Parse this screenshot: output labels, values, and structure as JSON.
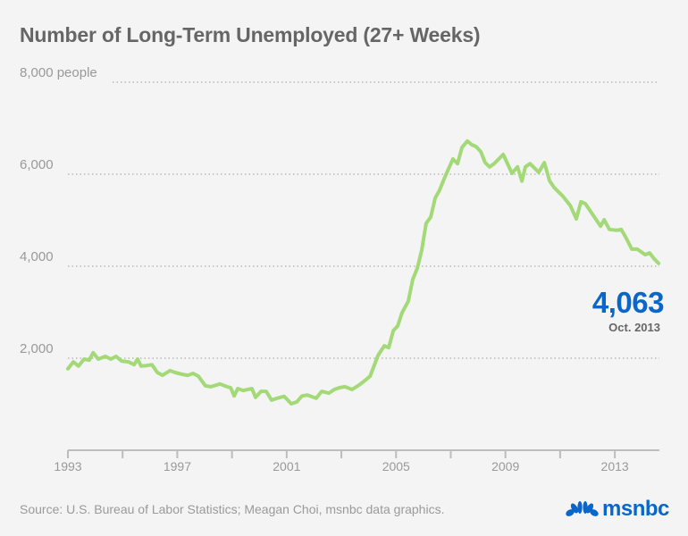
{
  "chart_data": {
    "type": "line",
    "title": "Number of Long-Term Unemployed (27+ Weeks)",
    "xlabel": "",
    "ylabel": "",
    "xlim": [
      1993,
      2014.63
    ],
    "ylim": [
      0,
      8000
    ],
    "grid": true,
    "x_ticks": [
      1993,
      1995,
      1997,
      1999,
      2001,
      2003,
      2005,
      2007,
      2009,
      2011,
      2013
    ],
    "x_tick_labels": [
      "1993",
      "1997",
      "2001",
      "2005",
      "2009",
      "2013"
    ],
    "x_tick_label_values": [
      1993,
      1997,
      2001,
      2005,
      2009,
      2013
    ],
    "y_ticks": [
      2000,
      4000,
      6000,
      8000
    ],
    "y_tick_labels": [
      "2,000",
      "4,000",
      "6,000",
      "8,000 people"
    ],
    "line_color": "#a3d977",
    "x": [
      1993.0,
      1993.2,
      1993.39,
      1993.59,
      1993.78,
      1993.92,
      1994.11,
      1994.37,
      1994.57,
      1994.76,
      1994.96,
      1995.22,
      1995.42,
      1995.55,
      1995.68,
      1995.88,
      1996.07,
      1996.27,
      1996.46,
      1996.73,
      1996.92,
      1997.18,
      1997.38,
      1997.58,
      1997.77,
      1998.03,
      1998.23,
      1998.56,
      1998.82,
      1998.95,
      1999.08,
      1999.21,
      1999.41,
      1999.73,
      1999.86,
      2000.06,
      2000.25,
      2000.45,
      2000.65,
      2000.91,
      2001.17,
      2001.37,
      2001.56,
      2001.76,
      2002.08,
      2002.28,
      2002.54,
      2002.74,
      2002.93,
      2003.13,
      2003.39,
      2003.65,
      2003.85,
      2004.05,
      2004.34,
      2004.57,
      2004.73,
      2004.9,
      2005.06,
      2005.22,
      2005.45,
      2005.61,
      2005.78,
      2005.94,
      2006.1,
      2006.27,
      2006.43,
      2006.59,
      2006.76,
      2007.08,
      2007.25,
      2007.41,
      2007.61,
      2007.77,
      2007.93,
      2008.1,
      2008.26,
      2008.42,
      2008.59,
      2008.92,
      2009.24,
      2009.44,
      2009.6,
      2009.73,
      2009.9,
      2010.22,
      2010.42,
      2010.61,
      2010.78,
      2011.1,
      2011.37,
      2011.59,
      2011.76,
      2011.92,
      2012.48,
      2012.61,
      2012.8,
      2013.07,
      2013.23,
      2013.39,
      2013.62,
      2013.82,
      2014.11,
      2014.27,
      2014.44,
      2014.6
    ],
    "values": [
      1770,
      1920,
      1830,
      1980,
      1960,
      2120,
      1980,
      2040,
      1980,
      2040,
      1940,
      1920,
      1860,
      1980,
      1830,
      1840,
      1860,
      1690,
      1630,
      1730,
      1690,
      1650,
      1630,
      1670,
      1610,
      1400,
      1380,
      1440,
      1380,
      1360,
      1180,
      1340,
      1300,
      1340,
      1150,
      1280,
      1280,
      1090,
      1130,
      1170,
      1010,
      1050,
      1180,
      1200,
      1130,
      1280,
      1240,
      1320,
      1360,
      1380,
      1320,
      1420,
      1510,
      1610,
      2060,
      2270,
      2230,
      2600,
      2700,
      2990,
      3240,
      3710,
      3960,
      4350,
      4930,
      5070,
      5480,
      5650,
      5900,
      6330,
      6230,
      6580,
      6720,
      6640,
      6600,
      6490,
      6250,
      6160,
      6230,
      6430,
      6020,
      6160,
      5850,
      6160,
      6230,
      6040,
      6250,
      5860,
      5710,
      5520,
      5320,
      5030,
      5400,
      5360,
      4870,
      5010,
      4800,
      4780,
      4800,
      4640,
      4370,
      4370,
      4250,
      4290,
      4160,
      4063
    ],
    "annotation": {
      "value": "4,063",
      "label": "Oct. 2013",
      "color": "#0a66c8"
    }
  },
  "source": "Source: U.S. Bureau of Labor Statistics; Meagan Choi, msnbc data graphics.",
  "logo": {
    "text": "msnbc",
    "color": "#0a66c8",
    "icon": "peacock-icon"
  }
}
